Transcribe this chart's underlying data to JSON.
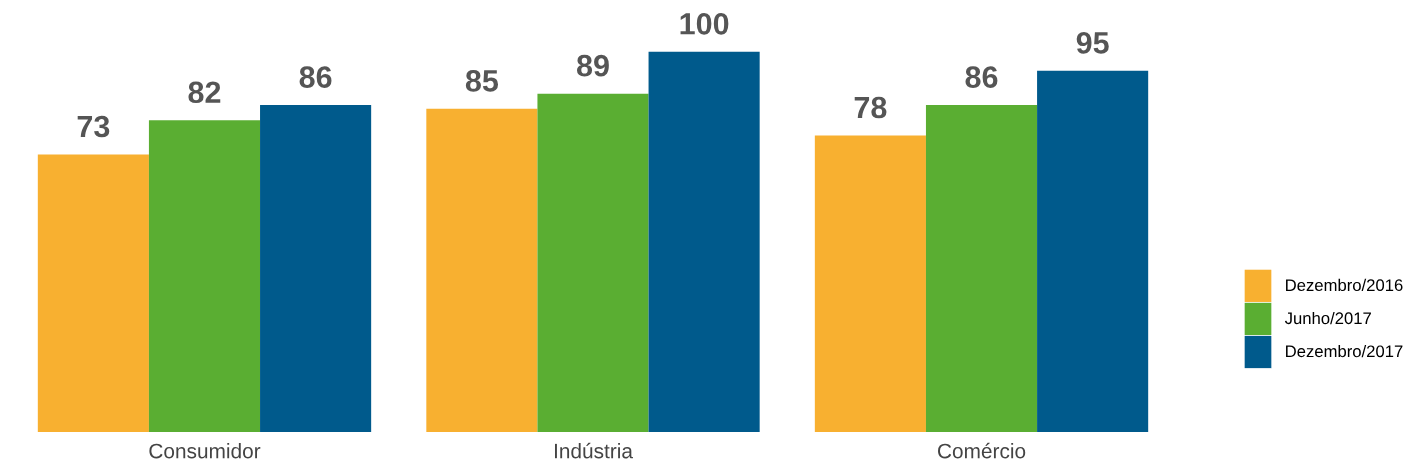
{
  "chart_data": {
    "type": "bar",
    "categories": [
      "Consumidor",
      "Indústria",
      "Comércio"
    ],
    "series": [
      {
        "name": "Dezembro/2016",
        "color": "#f8b030",
        "values": [
          73,
          85,
          78
        ]
      },
      {
        "name": "Junho/2017",
        "color": "#5aae32",
        "values": [
          82,
          89,
          86
        ]
      },
      {
        "name": "Dezembro/2017",
        "color": "#005a8c",
        "values": [
          86,
          100,
          95
        ]
      }
    ],
    "data_labels": true,
    "legend": "right",
    "grid": false
  }
}
